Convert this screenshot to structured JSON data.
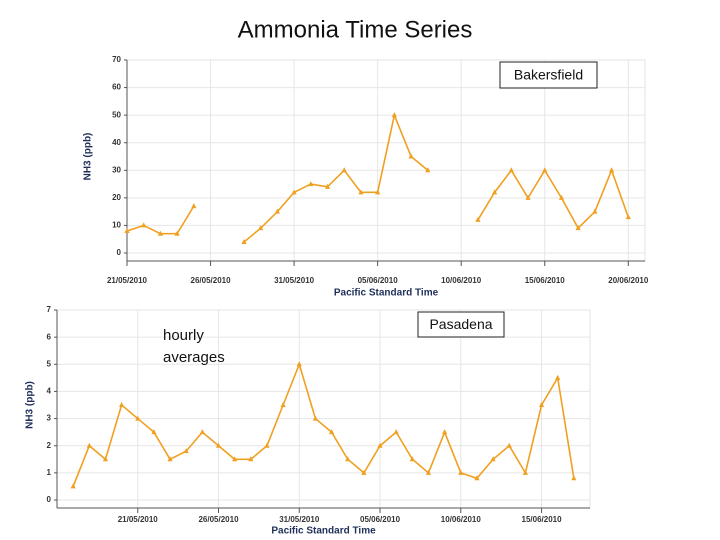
{
  "title": "Ammonia Time Series",
  "chart_data": [
    {
      "type": "line",
      "legend": "Bakersfield",
      "color": "#f0a020",
      "ylabel": "NH3 (ppb)",
      "xlabel": "Pacific Standard Time",
      "x": [
        "21/05/2010",
        "22/05/2010",
        "23/05/2010",
        "24/05/2010",
        "25/05/2010",
        "26/05/2010",
        "27/05/2010",
        "28/05/2010",
        "29/05/2010",
        "30/05/2010",
        "31/05/2010",
        "01/06/2010",
        "02/06/2010",
        "03/06/2010",
        "04/06/2010",
        "05/06/2010",
        "06/06/2010",
        "07/06/2010",
        "08/06/2010",
        "09/06/2010",
        "10/06/2010",
        "11/06/2010",
        "12/06/2010",
        "13/06/2010",
        "14/06/2010",
        "15/06/2010",
        "16/06/2010",
        "17/06/2010",
        "18/06/2010",
        "19/06/2010",
        "20/06/2010"
      ],
      "values": [
        8,
        10,
        7,
        7,
        17,
        null,
        null,
        4,
        9,
        15,
        22,
        25,
        24,
        30,
        22,
        22,
        50,
        35,
        30,
        null,
        null,
        12,
        22,
        30,
        20,
        30,
        20,
        9,
        15,
        30,
        13
      ],
      "xlim": [
        "21/05/2010",
        "21/06/2010"
      ],
      "xticks": [
        "21/05/2010",
        "26/05/2010",
        "31/05/2010",
        "05/06/2010",
        "10/06/2010",
        "15/06/2010",
        "20/06/2010"
      ],
      "ylim": [
        0,
        70
      ],
      "yticks": [
        0,
        10,
        20,
        30,
        40,
        50,
        60,
        70
      ],
      "grid": true
    },
    {
      "type": "line",
      "legend": "Pasadena",
      "annotation": "hourly averages",
      "color": "#f0a020",
      "ylabel": "NH3 (ppb)",
      "xlabel": "Pacific Standard Time",
      "x": [
        "17/05/2010",
        "18/05/2010",
        "19/05/2010",
        "20/05/2010",
        "21/05/2010",
        "22/05/2010",
        "23/05/2010",
        "24/05/2010",
        "25/05/2010",
        "26/05/2010",
        "27/05/2010",
        "28/05/2010",
        "29/05/2010",
        "30/05/2010",
        "31/05/2010",
        "01/06/2010",
        "02/06/2010",
        "03/06/2010",
        "04/06/2010",
        "05/06/2010",
        "06/06/2010",
        "07/06/2010",
        "08/06/2010",
        "09/06/2010",
        "10/06/2010",
        "11/06/2010",
        "12/06/2010",
        "13/06/2010",
        "14/06/2010",
        "15/06/2010",
        "16/06/2010",
        "17/06/2010"
      ],
      "values": [
        0.5,
        2,
        1.5,
        3.5,
        3,
        2.5,
        1.5,
        1.8,
        2.5,
        2,
        1.5,
        1.5,
        2,
        3.5,
        5,
        3,
        2.5,
        1.5,
        1,
        2,
        2.5,
        1.5,
        1,
        2.5,
        1,
        0.8,
        1.5,
        2,
        1,
        3.5,
        4.5,
        0.8
      ],
      "xlim": [
        "16/05/2010",
        "18/06/2010"
      ],
      "xticks": [
        "21/05/2010",
        "26/05/2010",
        "31/05/2010",
        "05/06/2010",
        "10/06/2010",
        "15/06/2010"
      ],
      "ylim": [
        0,
        7
      ],
      "yticks": [
        0,
        1,
        2,
        3,
        4,
        5,
        6,
        7
      ],
      "grid": true
    }
  ]
}
